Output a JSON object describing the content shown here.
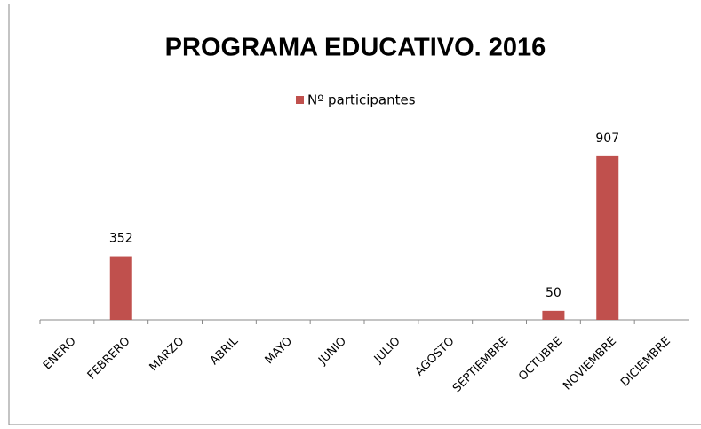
{
  "chart_data": {
    "type": "bar",
    "title": "PROGRAMA EDUCATIVO. 2016",
    "categories": [
      "ENERO",
      "FEBRERO",
      "MARZO",
      "ABRIL",
      "MAYO",
      "JUNIO",
      "JULIO",
      "AGOSTO",
      "SEPTIEMBRE",
      "OCTUBRE",
      "NOVIEMBRE",
      "DICIEMBRE"
    ],
    "series": [
      {
        "name": "Nº participantes",
        "color": "#c0504d",
        "values": [
          null,
          352,
          null,
          null,
          null,
          null,
          null,
          null,
          null,
          50,
          907,
          null
        ]
      }
    ],
    "ylim": [
      0,
      1000
    ],
    "legend": "top"
  }
}
